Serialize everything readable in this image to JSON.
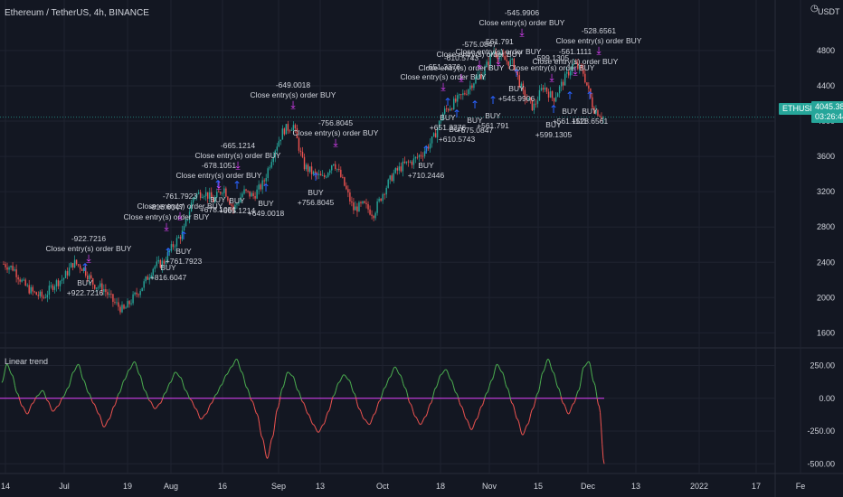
{
  "header": {
    "title": "Ethereum / TetherUS, 4h, BINANCE",
    "currency": "USDT"
  },
  "indicator": {
    "label": "Linear trend"
  },
  "price_badge": {
    "symbol": "ETHUSDT",
    "value": "4045.38",
    "countdown": "03:26:44"
  },
  "colors": {
    "background": "#131722",
    "grid": "#1f2330",
    "text": "#d1d4dc",
    "up": "#26a69a",
    "down": "#ef5350",
    "buy": "#2962ff",
    "close": "#e040fb",
    "trend_pos": "#4caf50",
    "trend_neg": "#ef5350",
    "zero_line": "#e040fb",
    "badge": "#26a69a"
  },
  "chart_data": [
    {
      "type": "candlestick",
      "title": "Ethereum / TetherUS, 4h, BINANCE",
      "y_axis": {
        "ticks": [
          1600,
          2000,
          2400,
          2800,
          3200,
          3600,
          4000,
          4400,
          4800
        ],
        "ylim": [
          1450,
          5250
        ],
        "unit": "USDT"
      },
      "x_axis": {
        "ticks": [
          "14",
          "Jul",
          "19",
          "Aug",
          "16",
          "Sep",
          "13",
          "Oct",
          "18",
          "Nov",
          "15",
          "Dec",
          "13",
          "2022",
          "17",
          "Fe"
        ]
      },
      "current_price": 4045.38,
      "price_path": [
        [
          "14",
          2380
        ],
        [
          "16",
          2330
        ],
        [
          "20",
          2150
        ],
        [
          "24",
          2050
        ],
        [
          "27",
          2000
        ],
        [
          "Jul",
          2150
        ],
        [
          "3",
          2220
        ],
        [
          "5",
          2400
        ],
        [
          "7",
          2330
        ],
        [
          "10",
          2150
        ],
        [
          "14",
          2100
        ],
        [
          "16",
          1950
        ],
        [
          "19",
          1850
        ],
        [
          "22",
          2000
        ],
        [
          "24",
          2150
        ],
        [
          "26",
          2350
        ],
        [
          "29",
          2400
        ],
        [
          "Aug",
          2600
        ],
        [
          "4",
          2750
        ],
        [
          "7",
          3150
        ],
        [
          "10",
          3200
        ],
        [
          "13",
          3100
        ],
        [
          "16",
          3250
        ],
        [
          "19",
          3000
        ],
        [
          "22",
          3200
        ],
        [
          "25",
          3150
        ],
        [
          "28",
          3300
        ],
        [
          "31",
          3650
        ],
        [
          "Sep",
          3900
        ],
        [
          "4",
          3950
        ],
        [
          "7",
          3500
        ],
        [
          "9",
          3400
        ],
        [
          "13",
          3350
        ],
        [
          "16",
          3550
        ],
        [
          "19",
          3300
        ],
        [
          "22",
          3000
        ],
        [
          "25",
          3050
        ],
        [
          "28",
          2950
        ],
        [
          "Oct",
          3200
        ],
        [
          "4",
          3400
        ],
        [
          "7",
          3500
        ],
        [
          "10",
          3550
        ],
        [
          "13",
          3650
        ],
        [
          "18",
          3800
        ],
        [
          "21",
          4100
        ],
        [
          "25",
          4200
        ],
        [
          "29",
          4300
        ],
        [
          "Nov",
          4450
        ],
        [
          "5",
          4550
        ],
        [
          "9",
          4800
        ],
        [
          "12",
          4700
        ],
        [
          "15",
          4650
        ],
        [
          "17",
          4300
        ],
        [
          "20",
          4150
        ],
        [
          "23",
          4400
        ],
        [
          "26",
          4250
        ],
        [
          "29",
          4450
        ],
        [
          "Dec",
          4650
        ],
        [
          "3",
          4550
        ],
        [
          "4",
          4150
        ],
        [
          "5",
          4045.38
        ]
      ],
      "signals": [
        {
          "type": "buy",
          "label": "BUY",
          "value": "+922.7216"
        },
        {
          "type": "close",
          "label": "Close entry(s) order BUY",
          "value": "-922.7216"
        },
        {
          "type": "buy",
          "label": "BUY",
          "value": "+816.6047"
        },
        {
          "type": "close",
          "label": "Close entry(s) order BUY",
          "value": "-816.6047"
        },
        {
          "type": "buy",
          "label": "BUY",
          "value": "+761.7923"
        },
        {
          "type": "close",
          "label": "Close entry(s) order BUY",
          "value": "-761.7923"
        },
        {
          "type": "buy",
          "label": "BUY",
          "value": "+678.1051"
        },
        {
          "type": "close",
          "label": "Close entry(s) order BUY",
          "value": "-678.1051"
        },
        {
          "type": "buy",
          "label": "BUY",
          "value": "+665.1214"
        },
        {
          "type": "close",
          "label": "Close entry(s) order BUY",
          "value": "-665.1214"
        },
        {
          "type": "buy",
          "label": "BUY",
          "value": "+649.0018"
        },
        {
          "type": "close",
          "label": "Close entry(s) order BUY",
          "value": "-649.0018"
        },
        {
          "type": "buy",
          "label": "BUY",
          "value": "+756.8045"
        },
        {
          "type": "close",
          "label": "Close entry(s) order BUY",
          "value": "-756.8045"
        },
        {
          "type": "buy",
          "label": "BUY",
          "value": "+710.2446"
        },
        {
          "type": "buy",
          "label": "BUY",
          "value": "+651.3376"
        },
        {
          "type": "close",
          "label": "Close entry(s) order BUY",
          "value": "-651.3376"
        },
        {
          "type": "buy",
          "label": "BUY",
          "value": "+610.5743"
        },
        {
          "type": "close",
          "label": "Close entry(s) order BUY",
          "value": "-610.5743"
        },
        {
          "type": "buy",
          "label": "BUY",
          "value": "+575.0847"
        },
        {
          "type": "close",
          "label": "Close entry(s) order BUY",
          "value": "-575.0847"
        },
        {
          "type": "buy",
          "label": "BUY",
          "value": "+561.791"
        },
        {
          "type": "close",
          "label": "Close entry(s) order BUY",
          "value": "-561.791"
        },
        {
          "type": "buy",
          "label": "BUY",
          "value": "+545.9906"
        },
        {
          "type": "close",
          "label": "Close entry(s) order BUY",
          "value": "-545.9906"
        },
        {
          "type": "buy",
          "label": "BUY",
          "value": "+599.1305"
        },
        {
          "type": "close",
          "label": "Close entry(s) order BUY",
          "value": "-599.1305"
        },
        {
          "type": "buy",
          "label": "BUY",
          "value": "+561.1111"
        },
        {
          "type": "close",
          "label": "Close entry(s) order BUY",
          "value": "-561.1111"
        },
        {
          "type": "buy",
          "label": "BUY",
          "value": "+528.6561"
        },
        {
          "type": "close",
          "label": "Close entry(s) order BUY",
          "value": "-528.6561"
        }
      ]
    },
    {
      "type": "line",
      "title": "Linear trend",
      "y_axis": {
        "ticks": [
          250,
          0,
          -250,
          -500
        ],
        "tick_labels": [
          "250.00",
          "0.00",
          "-250.00",
          "-500.00"
        ],
        "ylim": [
          -560,
          350
        ]
      },
      "zero_line": 0,
      "series": [
        {
          "values": [
            120,
            260,
            180,
            40,
            -60,
            -120,
            -40,
            20,
            60,
            -20,
            -100,
            -60,
            10,
            80,
            200,
            260,
            140,
            40,
            -40,
            -120,
            -220,
            -160,
            -60,
            40,
            140,
            220,
            280,
            180,
            60,
            -20,
            -80,
            -40,
            40,
            120,
            200,
            160,
            60,
            -10,
            -80,
            -160,
            -120,
            -40,
            30,
            100,
            180,
            240,
            300,
            200,
            80,
            -20,
            -120,
            -300,
            -460,
            -300,
            -80,
            80,
            200,
            170,
            60,
            -30,
            -120,
            -200,
            -260,
            -200,
            -100,
            20,
            120,
            180,
            140,
            40,
            -80,
            -160,
            -200,
            -120,
            -20,
            80,
            160,
            240,
            180,
            80,
            -40,
            -140,
            -200,
            -140,
            -40,
            80,
            180,
            220,
            140,
            40,
            -60,
            -160,
            -240,
            -160,
            -60,
            40,
            140,
            260,
            200,
            80,
            -40,
            -160,
            -280,
            -200,
            -80,
            40,
            200,
            300,
            200,
            80,
            -40,
            -120,
            -40,
            60,
            240,
            280,
            120,
            -60,
            -500
          ]
        }
      ]
    }
  ]
}
